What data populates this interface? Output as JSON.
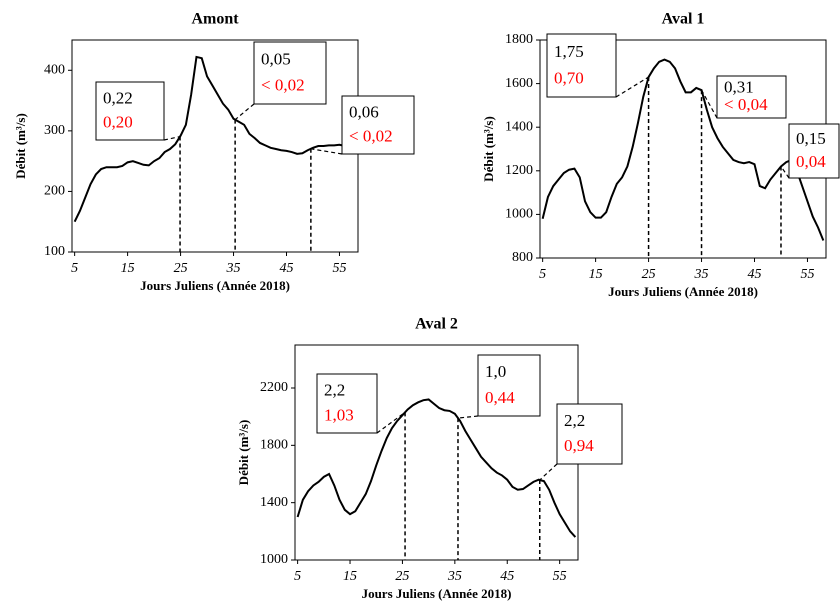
{
  "chart_data": [
    {
      "type": "line",
      "title": "Amont",
      "x_label": "Jours Juliens (Année 2018)",
      "y_label": "Débit (m³/s)",
      "xlim": [
        4.5,
        58.5
      ],
      "xticks": [
        5,
        15,
        25,
        35,
        45,
        55
      ],
      "ylim": [
        100,
        450
      ],
      "yticks": [
        100,
        200,
        300,
        400
      ],
      "x": [
        5,
        6,
        7,
        8,
        9,
        10,
        11,
        12,
        13,
        14,
        15,
        16,
        17,
        18,
        19,
        20,
        21,
        22,
        23,
        24,
        25,
        26,
        27,
        28,
        29,
        30,
        31,
        32,
        33,
        34,
        35,
        36,
        37,
        38,
        39,
        40,
        41,
        42,
        43,
        44,
        45,
        46,
        47,
        48,
        49,
        50,
        51,
        52,
        53,
        54,
        55,
        56,
        57,
        58
      ],
      "series": [
        {
          "color": "#000000",
          "values": [
            150,
            168,
            190,
            212,
            228,
            237,
            240,
            240,
            240,
            242,
            248,
            250,
            247,
            244,
            243,
            250,
            255,
            265,
            270,
            278,
            292,
            310,
            360,
            422,
            420,
            390,
            375,
            360,
            345,
            335,
            320,
            315,
            310,
            295,
            288,
            280,
            276,
            272,
            270,
            268,
            267,
            265,
            262,
            263,
            268,
            272,
            275,
            275,
            276,
            276,
            277,
            275,
            276,
            275
          ]
        }
      ],
      "annotations": [
        {
          "x": 24.9,
          "label": "0,22",
          "label2": "0,20"
        },
        {
          "x": 35.3,
          "label": "0,05",
          "label2": "< 0,02"
        },
        {
          "x": 49.6,
          "label": "0,06",
          "label2": "< 0,02"
        }
      ]
    },
    {
      "type": "line",
      "title": "Aval 1",
      "x_label": "Jours Juliens (Année 2018)",
      "y_label": "Débit (m³/s)",
      "xlim": [
        4.5,
        58.5
      ],
      "xticks": [
        5,
        15,
        25,
        35,
        45,
        55
      ],
      "ylim": [
        800,
        1800
      ],
      "yticks": [
        800,
        1000,
        1200,
        1400,
        1600,
        1800
      ],
      "x": [
        5,
        6,
        7,
        8,
        9,
        10,
        11,
        12,
        13,
        14,
        15,
        16,
        17,
        18,
        19,
        20,
        21,
        22,
        23,
        24,
        25,
        26,
        27,
        28,
        29,
        30,
        31,
        32,
        33,
        34,
        35,
        36,
        37,
        38,
        39,
        40,
        41,
        42,
        43,
        44,
        45,
        46,
        47,
        48,
        49,
        50,
        51,
        52,
        53,
        54,
        55,
        56,
        57,
        58
      ],
      "series": [
        {
          "color": "#000000",
          "values": [
            980,
            1080,
            1130,
            1160,
            1190,
            1205,
            1210,
            1170,
            1060,
            1010,
            985,
            985,
            1010,
            1080,
            1140,
            1170,
            1220,
            1310,
            1420,
            1540,
            1630,
            1670,
            1700,
            1710,
            1700,
            1670,
            1610,
            1560,
            1560,
            1580,
            1570,
            1480,
            1400,
            1350,
            1310,
            1280,
            1250,
            1240,
            1235,
            1240,
            1230,
            1130,
            1120,
            1160,
            1190,
            1220,
            1240,
            1250,
            1200,
            1130,
            1060,
            990,
            940,
            880
          ]
        }
      ],
      "annotations": [
        {
          "x": 25,
          "label": "1,75",
          "label2": "0,70"
        },
        {
          "x": 35,
          "label": "0,31",
          "label2": "< 0,04"
        },
        {
          "x": 50,
          "label": "0,15",
          "label2": "0,04"
        }
      ]
    },
    {
      "type": "line",
      "title": "Aval 2",
      "x_label": "Jours Juliens (Année 2018)",
      "y_label": "Débit (m³/s)",
      "xlim": [
        4.5,
        58.5
      ],
      "xticks": [
        5,
        15,
        25,
        35,
        45,
        55
      ],
      "ylim": [
        1000,
        2500
      ],
      "yticks": [
        1000,
        1400,
        1800,
        2200
      ],
      "x": [
        5,
        6,
        7,
        8,
        9,
        10,
        11,
        12,
        13,
        14,
        15,
        16,
        17,
        18,
        19,
        20,
        21,
        22,
        23,
        24,
        25,
        26,
        27,
        28,
        29,
        30,
        31,
        32,
        33,
        34,
        35,
        36,
        37,
        38,
        39,
        40,
        41,
        42,
        43,
        44,
        45,
        46,
        47,
        48,
        49,
        50,
        51,
        52,
        53,
        54,
        55,
        56,
        57,
        58
      ],
      "series": [
        {
          "color": "#000000",
          "values": [
            1300,
            1420,
            1480,
            1520,
            1545,
            1580,
            1600,
            1520,
            1420,
            1350,
            1320,
            1340,
            1400,
            1460,
            1550,
            1660,
            1760,
            1850,
            1920,
            1970,
            2010,
            2050,
            2080,
            2100,
            2115,
            2120,
            2090,
            2060,
            2045,
            2040,
            2020,
            1970,
            1900,
            1840,
            1780,
            1720,
            1680,
            1640,
            1610,
            1590,
            1560,
            1510,
            1490,
            1495,
            1520,
            1545,
            1560,
            1550,
            1490,
            1400,
            1320,
            1260,
            1200,
            1160
          ]
        }
      ],
      "annotations": [
        {
          "x": 25.5,
          "label": "2,2",
          "label2": "1,03"
        },
        {
          "x": 35.6,
          "label": "1,0",
          "label2": "0,44"
        },
        {
          "x": 51.2,
          "label": "2,2",
          "label2": "0,94"
        }
      ]
    }
  ]
}
